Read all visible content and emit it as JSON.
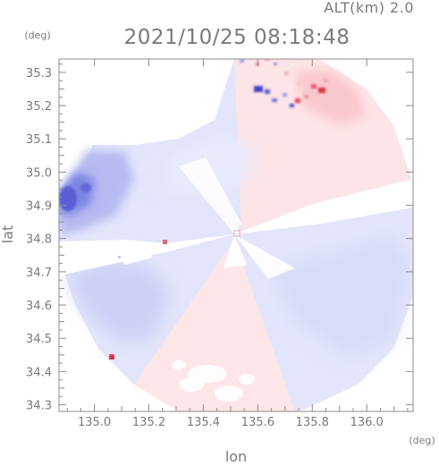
{
  "chart_data": {
    "type": "heatmap",
    "title": "2021/10/25 08:18:48",
    "altitude_label": "ALT(km) 2.0",
    "xlabel": "lon",
    "ylabel": "lat",
    "x_unit": "(deg)",
    "y_unit": "(deg)",
    "xlim": [
      134.87,
      136.17
    ],
    "ylim": [
      34.28,
      35.34
    ],
    "x_ticks": [
      135.0,
      135.2,
      135.4,
      135.6,
      135.8,
      136.0
    ],
    "x_tick_labels": [
      "135.0",
      "135.2",
      "135.4",
      "135.6",
      "135.8",
      "136.0"
    ],
    "y_ticks": [
      34.3,
      34.4,
      34.5,
      34.6,
      34.7,
      34.8,
      34.9,
      35.0,
      35.1,
      35.2,
      35.3
    ],
    "y_tick_labels": [
      "34.3",
      "34.4",
      "34.5",
      "34.6",
      "34.7",
      "34.8",
      "34.9",
      "35.0",
      "35.1",
      "35.2",
      "35.3"
    ],
    "radar_center": [
      135.52,
      34.82
    ],
    "colors": {
      "negative_strong": "#5a5fd6",
      "negative_mid": "#9da4ec",
      "negative_weak": "#dfe2fb",
      "neutral": "#ffffff",
      "positive_weak": "#fde4e6",
      "positive_strong": "#e8434f"
    }
  }
}
